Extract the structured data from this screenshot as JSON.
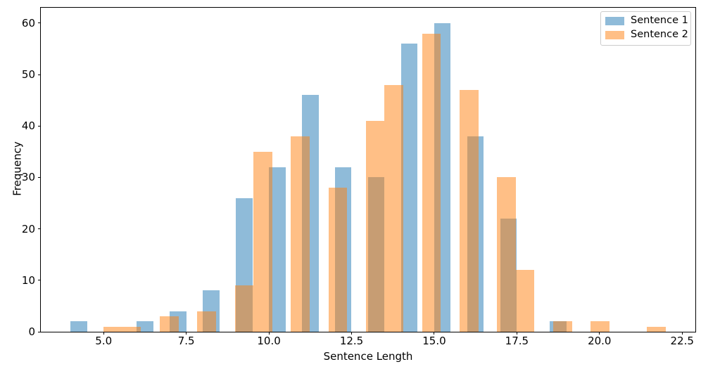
{
  "figure": {
    "background": "#ffffff",
    "text_color": "#000000"
  },
  "chart_data": {
    "type": "bar",
    "subtype": "overlapping-histograms",
    "title": "",
    "xlabel": "Sentence Length",
    "ylabel": "Frequency",
    "xlim": [
      3.1,
      22.9
    ],
    "ylim": [
      0,
      63
    ],
    "grid": false,
    "legend_position": "upper right",
    "x_ticks": [
      {
        "value": 5.0,
        "label": "5.0"
      },
      {
        "value": 7.5,
        "label": "7.5"
      },
      {
        "value": 10.0,
        "label": "10.0"
      },
      {
        "value": 12.5,
        "label": "12.5"
      },
      {
        "value": 15.0,
        "label": "15.0"
      },
      {
        "value": 17.5,
        "label": "17.5"
      },
      {
        "value": 20.0,
        "label": "20.0"
      },
      {
        "value": 22.5,
        "label": "22.5"
      }
    ],
    "y_ticks": [
      {
        "value": 0,
        "label": "0"
      },
      {
        "value": 10,
        "label": "10"
      },
      {
        "value": 20,
        "label": "20"
      },
      {
        "value": 30,
        "label": "30"
      },
      {
        "value": 40,
        "label": "40"
      },
      {
        "value": 50,
        "label": "50"
      },
      {
        "value": 60,
        "label": "60"
      }
    ],
    "series": [
      {
        "name": "Sentence 1",
        "color": "#1f77b4",
        "alpha": 0.5,
        "bin_width": 0.5,
        "total_count": 360,
        "bins": [
          {
            "from": 4.0,
            "to": 4.5,
            "count": 2
          },
          {
            "from": 6.0,
            "to": 6.5,
            "count": 2
          },
          {
            "from": 7.0,
            "to": 7.5,
            "count": 4
          },
          {
            "from": 8.0,
            "to": 8.5,
            "count": 8
          },
          {
            "from": 9.0,
            "to": 9.5,
            "count": 26
          },
          {
            "from": 10.0,
            "to": 10.5,
            "count": 32
          },
          {
            "from": 11.0,
            "to": 11.5,
            "count": 46
          },
          {
            "from": 12.0,
            "to": 12.5,
            "count": 32
          },
          {
            "from": 13.0,
            "to": 13.5,
            "count": 30
          },
          {
            "from": 14.0,
            "to": 14.5,
            "count": 56
          },
          {
            "from": 15.0,
            "to": 15.5,
            "count": 60
          },
          {
            "from": 16.0,
            "to": 16.5,
            "count": 38
          },
          {
            "from": 17.0,
            "to": 17.5,
            "count": 22
          },
          {
            "from": 18.5,
            "to": 19.0,
            "count": 2
          }
        ]
      },
      {
        "name": "Sentence 2",
        "color": "#ff7f0e",
        "alpha": 0.5,
        "bin_width": 0.5667,
        "total_count": 360,
        "bins": [
          {
            "from": 5.0,
            "to": 5.5667,
            "count": 1
          },
          {
            "from": 5.5667,
            "to": 6.1333,
            "count": 1
          },
          {
            "from": 6.7,
            "to": 7.2667,
            "count": 3
          },
          {
            "from": 7.8333,
            "to": 8.4,
            "count": 4
          },
          {
            "from": 8.9667,
            "to": 9.5333,
            "count": 9
          },
          {
            "from": 9.5333,
            "to": 10.1,
            "count": 35
          },
          {
            "from": 10.6667,
            "to": 11.2333,
            "count": 38
          },
          {
            "from": 11.8,
            "to": 12.3667,
            "count": 28
          },
          {
            "from": 12.9333,
            "to": 13.5,
            "count": 41
          },
          {
            "from": 13.5,
            "to": 14.0667,
            "count": 48
          },
          {
            "from": 14.6333,
            "to": 15.2,
            "count": 58
          },
          {
            "from": 15.7667,
            "to": 16.3333,
            "count": 47
          },
          {
            "from": 16.9,
            "to": 17.4667,
            "count": 30
          },
          {
            "from": 17.4667,
            "to": 18.0333,
            "count": 12
          },
          {
            "from": 18.6,
            "to": 19.1667,
            "count": 2
          },
          {
            "from": 19.7333,
            "to": 20.3,
            "count": 2
          },
          {
            "from": 21.4333,
            "to": 22.0,
            "count": 1
          }
        ]
      }
    ]
  }
}
